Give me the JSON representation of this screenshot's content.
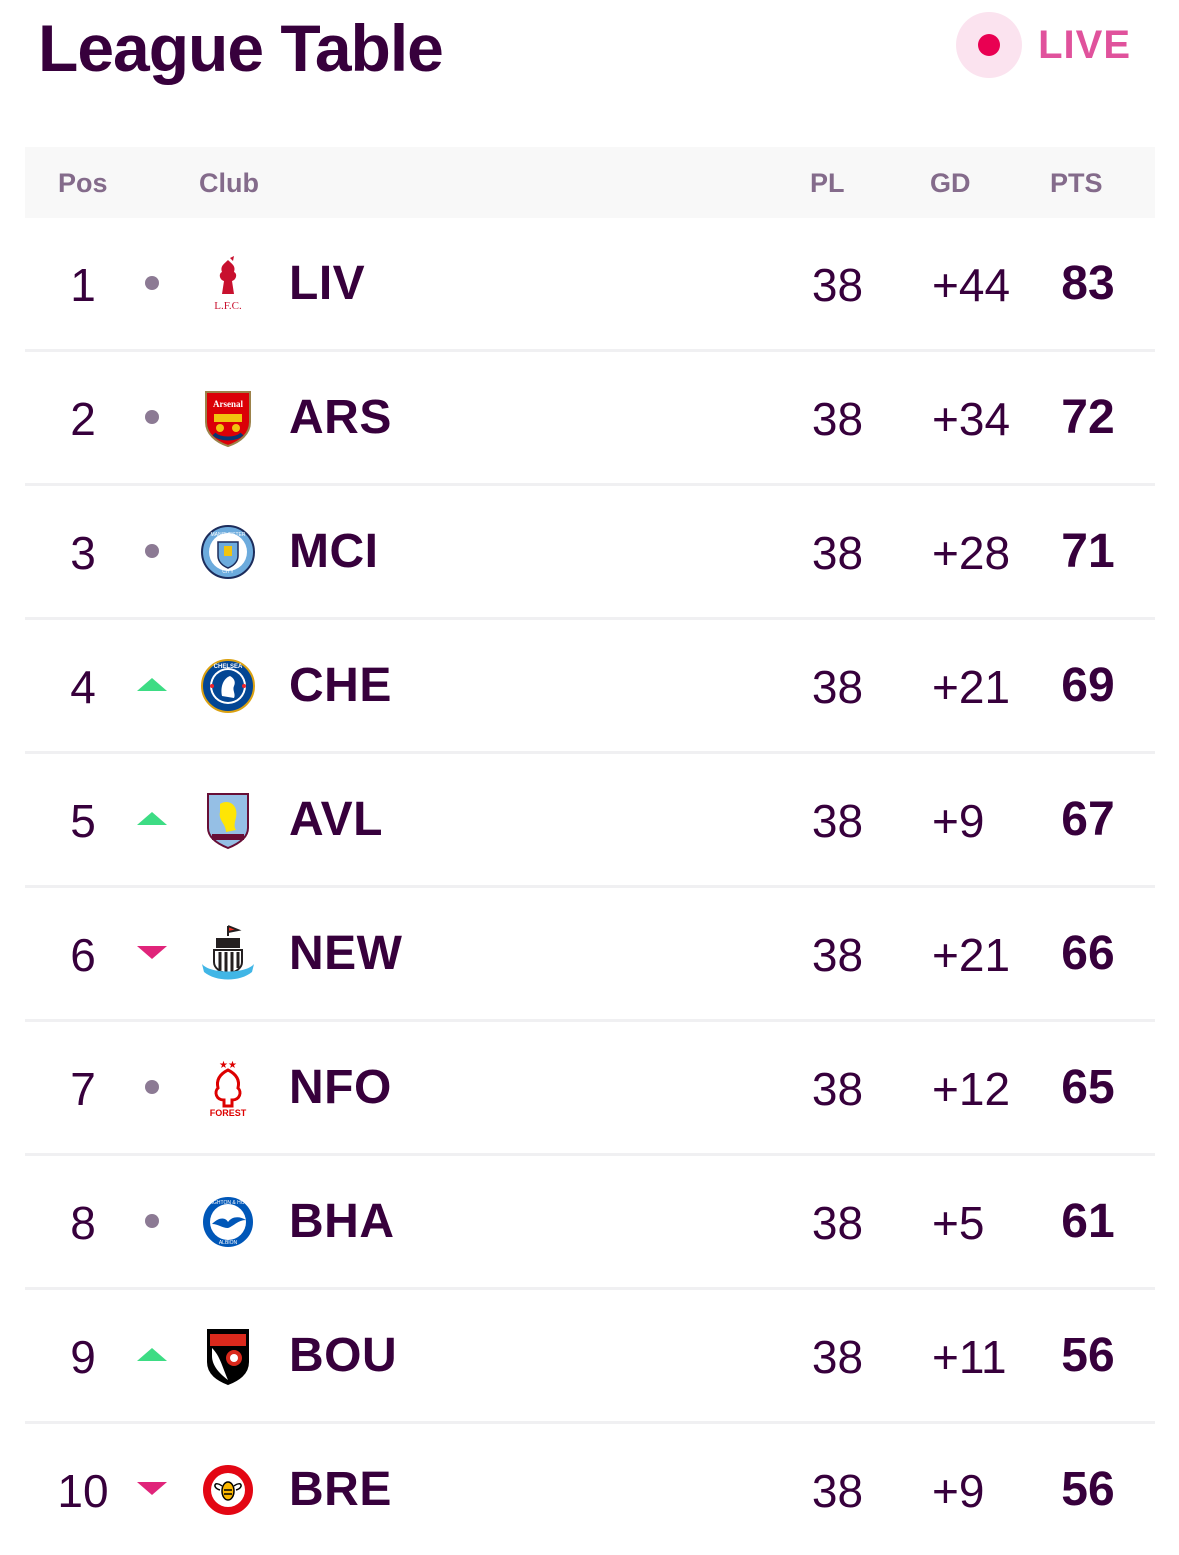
{
  "header": {
    "title": "League Table",
    "live_label": "LIVE"
  },
  "table": {
    "columns": {
      "pos": "Pos",
      "club": "Club",
      "pl": "PL",
      "gd": "GD",
      "pts": "PTS"
    },
    "rows": [
      {
        "pos": "1",
        "movement": "same",
        "crest": "liverpool-crest",
        "abbr": "LIV",
        "pl": "38",
        "gd": "+44",
        "pts": "83"
      },
      {
        "pos": "2",
        "movement": "same",
        "crest": "arsenal-crest",
        "abbr": "ARS",
        "pl": "38",
        "gd": "+34",
        "pts": "72"
      },
      {
        "pos": "3",
        "movement": "same",
        "crest": "man-city-crest",
        "abbr": "MCI",
        "pl": "38",
        "gd": "+28",
        "pts": "71"
      },
      {
        "pos": "4",
        "movement": "up",
        "crest": "chelsea-crest",
        "abbr": "CHE",
        "pl": "38",
        "gd": "+21",
        "pts": "69"
      },
      {
        "pos": "5",
        "movement": "up",
        "crest": "aston-villa-crest",
        "abbr": "AVL",
        "pl": "38",
        "gd": "+9",
        "pts": "67"
      },
      {
        "pos": "6",
        "movement": "down",
        "crest": "newcastle-crest",
        "abbr": "NEW",
        "pl": "38",
        "gd": "+21",
        "pts": "66"
      },
      {
        "pos": "7",
        "movement": "same",
        "crest": "forest-crest",
        "abbr": "NFO",
        "pl": "38",
        "gd": "+12",
        "pts": "65"
      },
      {
        "pos": "8",
        "movement": "same",
        "crest": "brighton-crest",
        "abbr": "BHA",
        "pl": "38",
        "gd": "+5",
        "pts": "61"
      },
      {
        "pos": "9",
        "movement": "up",
        "crest": "bournemouth-crest",
        "abbr": "BOU",
        "pl": "38",
        "gd": "+11",
        "pts": "56"
      },
      {
        "pos": "10",
        "movement": "down",
        "crest": "brentford-crest",
        "abbr": "BRE",
        "pl": "38",
        "gd": "+9",
        "pts": "56"
      }
    ]
  },
  "colors": {
    "primary": "#37003c",
    "live": "#e90052",
    "up": "#3ddc84",
    "down": "#e0247a",
    "same": "#8c7a94"
  }
}
